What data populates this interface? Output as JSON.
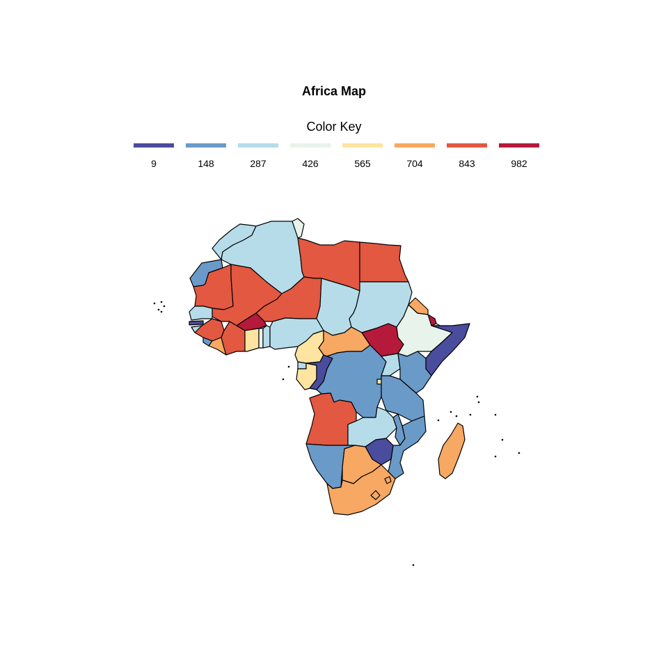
{
  "title": "Africa Map",
  "legend": {
    "title": "Color Key",
    "items": [
      {
        "label": "9",
        "color": "#4a4c9d"
      },
      {
        "label": "148",
        "color": "#6a9ac8"
      },
      {
        "label": "287",
        "color": "#b6dcea"
      },
      {
        "label": "426",
        "color": "#e8f3ec"
      },
      {
        "label": "565",
        "color": "#fde4a0"
      },
      {
        "label": "704",
        "color": "#f7a862"
      },
      {
        "label": "843",
        "color": "#e25841"
      },
      {
        "label": "982",
        "color": "#b51a3a"
      }
    ]
  }
}
